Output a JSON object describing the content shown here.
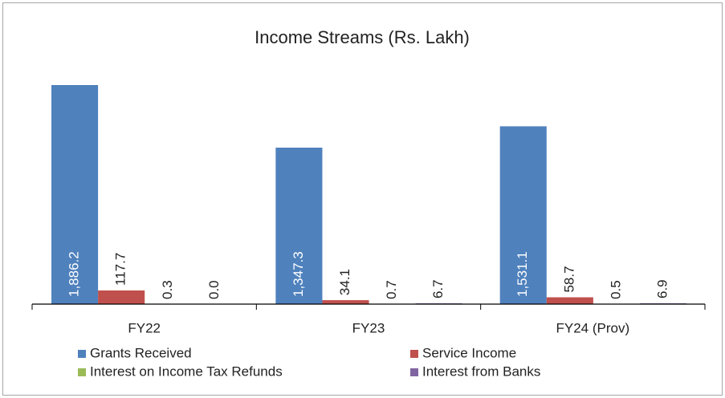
{
  "chart_data": {
    "type": "bar",
    "title": "Income Streams (Rs. Lakh)",
    "categories": [
      "FY22",
      "FY23",
      "FY24 (Prov)"
    ],
    "series": [
      {
        "name": "Grants Received",
        "color": "#4f81bd",
        "values": [
          1886.2,
          1347.3,
          1531.1
        ],
        "value_labels": [
          "1,886.2",
          "1,347.3",
          "1,531.1"
        ]
      },
      {
        "name": "Service Income",
        "color": "#c0504d",
        "values": [
          117.7,
          34.1,
          58.7
        ],
        "value_labels": [
          "117.7",
          "34.1",
          "58.7"
        ]
      },
      {
        "name": "Interest on Income Tax Refunds",
        "color": "#9bbb59",
        "values": [
          0.3,
          0.7,
          0.5
        ],
        "value_labels": [
          "0.3",
          "0.7",
          "0.5"
        ]
      },
      {
        "name": "Interest from Banks",
        "color": "#8064a2",
        "values": [
          0.0,
          6.7,
          6.9
        ],
        "value_labels": [
          "0.0",
          "6.7",
          "6.9"
        ]
      }
    ]
  }
}
